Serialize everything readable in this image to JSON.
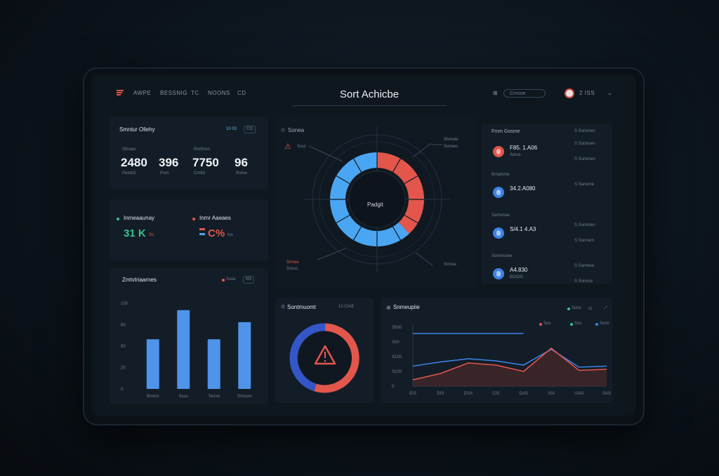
{
  "header": {
    "title": "Sort Achicbe",
    "nav": [
      "AWPE",
      "BESSNIG",
      "TC",
      "NOONS",
      "CD"
    ],
    "search_label": "Cmooe",
    "user_label": "2 ISS"
  },
  "stats": {
    "title": "Smntur Ollehy",
    "badge_a": "10 03",
    "badge_b": "CO",
    "items": [
      {
        "label": "Sttcaes",
        "value": "2480",
        "sub": "Pemb3"
      },
      {
        "label": "",
        "value": "396",
        "sub": "Pom"
      },
      {
        "label": "Rmtmoo",
        "value": "7750",
        "sub": "Cmtid"
      },
      {
        "label": "",
        "value": "96",
        "sub": "Rome"
      }
    ]
  },
  "activity": {
    "left_title": "Inmeaaunay",
    "left_value": "31 K",
    "left_sub": "Ss",
    "right_title": "Inmr Aaeaes",
    "right_value": "C%",
    "right_sub": "Ios"
  },
  "donut": {
    "title": "Sonea",
    "center": "Padgit",
    "alert": "Soui",
    "callout_tr": "Shmate",
    "callout_tr2": "Sorwes",
    "callout_bl": "Srmee",
    "callout_bl2": "Scesc",
    "callout_br": "Srmoa",
    "colors": {
      "blue": "#4aa6f2",
      "red": "#e3564c"
    }
  },
  "accounts": {
    "header_left": "Fmm Gosme",
    "header_right": "S Sommen",
    "rows": [
      {
        "name": "",
        "value": "F85. 1.A06",
        "sub": "Aorus",
        "right": "S Sommen",
        "right2": "S Sommen",
        "color": "#e3564c"
      },
      {
        "name": "Bmamme",
        "value": "34.2.A080",
        "sub": "",
        "right": "S Saneme",
        "right2": "",
        "color": "#3d83e6"
      },
      {
        "name": "Sarmmae",
        "value": "S/4.1 4.A3",
        "sub": "",
        "right": "S Sommen",
        "right2": "S Sonnem",
        "color": "#3d83e6"
      },
      {
        "name": "Sommoree",
        "value": "A4.830",
        "sub": "BOOIS",
        "right": "S Samnee",
        "right2": "S Sonnce",
        "color": "#3d83e6"
      }
    ]
  },
  "bars": {
    "title": "Zmtvtriaarnes",
    "legend": "Ssoe",
    "pill": "NS",
    "y_ticks": [
      "100",
      "80",
      "50",
      "20",
      "0"
    ],
    "categories": [
      "Brnem",
      "Sssu",
      "Tarme",
      "Smnum"
    ],
    "values": [
      58,
      92,
      58,
      78
    ],
    "color": "#4f93ea"
  },
  "alertring": {
    "title": "Sontmuomt",
    "badge": "10 CIAE"
  },
  "line": {
    "title": "Snmeupiie",
    "legend": [
      "Sons",
      "Sos",
      "Sos"
    ],
    "y_ticks": [
      "S500",
      "S00",
      "S100",
      "S100",
      "0"
    ],
    "x_ticks": [
      "EIS",
      "DIS",
      "DSA",
      "CIS",
      "DAS",
      "ISA",
      "UAN",
      "SAS"
    ]
  },
  "chart_data": [
    {
      "type": "bar",
      "title": "Zmtvtriaarnes",
      "categories": [
        "Brnem",
        "Sssu",
        "Tarme",
        "Smnum"
      ],
      "values": [
        58,
        92,
        58,
        78
      ],
      "ylim": [
        0,
        100
      ]
    },
    {
      "type": "pie",
      "categories": [
        "blue",
        "red"
      ],
      "values": [
        62,
        38
      ]
    },
    {
      "type": "line",
      "title": "Snmeupiie",
      "x": [
        "EIS",
        "DIS",
        "DSA",
        "CIS",
        "DAS",
        "ISA",
        "UAN",
        "SAS"
      ],
      "series": [
        {
          "values": [
            500,
            500,
            500,
            500,
            500,
            null,
            null,
            null
          ]
        },
        {
          "values": [
            190,
            230,
            260,
            240,
            200,
            350,
            180,
            190
          ]
        },
        {
          "values": [
            60,
            120,
            220,
            200,
            140,
            360,
            150,
            160
          ]
        }
      ],
      "ylim": [
        0,
        600
      ]
    }
  ]
}
